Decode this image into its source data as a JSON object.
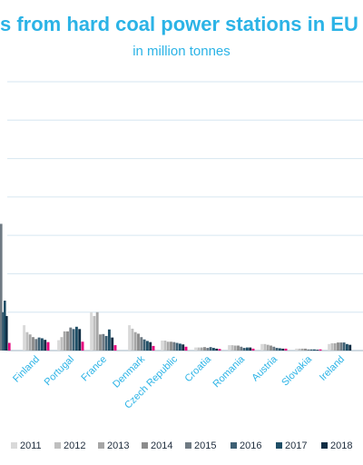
{
  "chart_data": {
    "type": "bar",
    "title": "s from hard coal power stations in EU",
    "subtitle": "in million tonnes",
    "xlabel": "",
    "ylabel": "",
    "ylim": [
      0,
      70
    ],
    "grid": true,
    "categories": [
      "",
      "Finland",
      "Portugal",
      "France",
      "Denmark",
      "Czech Republic",
      "Croatia",
      "Romania",
      "Austria",
      "Slovakia",
      "Ireland",
      ""
    ],
    "series": [
      {
        "name": "2011",
        "color": "#d9d9d9",
        "values": [
          null,
          6.6,
          2.7,
          10.0,
          6.6,
          2.6,
          0.8,
          1.4,
          1.7,
          0.5,
          1.7,
          null
        ]
      },
      {
        "name": "2012",
        "color": "#bfbfbf",
        "values": [
          null,
          4.8,
          3.5,
          9.0,
          5.7,
          2.6,
          0.8,
          1.4,
          1.7,
          0.5,
          1.9,
          null
        ]
      },
      {
        "name": "2013",
        "color": "#a6a6a6",
        "values": [
          null,
          4.2,
          5.0,
          10.0,
          4.8,
          2.3,
          0.8,
          1.3,
          1.5,
          0.5,
          1.9,
          null
        ]
      },
      {
        "name": "2014",
        "color": "#8c8c8c",
        "values": [
          null,
          3.5,
          5.0,
          4.2,
          4.4,
          2.3,
          0.9,
          1.3,
          1.3,
          0.5,
          2.1,
          null
        ]
      },
      {
        "name": "2015",
        "color": "#6f7a83",
        "values": [
          null,
          3.0,
          6.0,
          4.3,
          3.5,
          2.2,
          0.7,
          1.0,
          1.0,
          0.3,
          2.1,
          null
        ]
      },
      {
        "name": "2016",
        "color": "#3d5f73",
        "values": [
          null,
          3.4,
          5.6,
          3.8,
          2.9,
          2.0,
          0.9,
          0.7,
          0.7,
          0.3,
          2.1,
          null
        ]
      },
      {
        "name": "2017",
        "color": "#1f4e66",
        "values": [
          null,
          3.2,
          6.2,
          5.5,
          2.5,
          1.8,
          0.7,
          0.8,
          0.6,
          0.3,
          1.7,
          null
        ]
      },
      {
        "name": "2018",
        "color": "#0f2d44",
        "values": [
          null,
          2.8,
          5.6,
          3.4,
          2.2,
          1.6,
          0.5,
          0.8,
          0.5,
          0.2,
          1.5,
          null
        ]
      }
    ],
    "partial_series": [
      {
        "color": "#e6007e",
        "values": [
          null,
          2.2,
          2.3,
          1.4,
          1.2,
          1.0,
          0.4,
          0.5,
          0.5,
          0.3,
          0.0,
          null
        ]
      }
    ],
    "legend_position": "bottom"
  }
}
